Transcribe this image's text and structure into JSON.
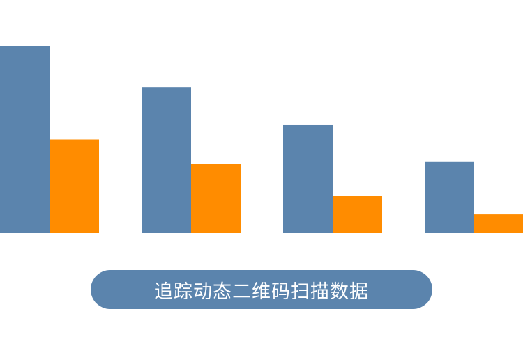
{
  "chart_data": {
    "type": "bar",
    "categories": [
      "",
      "",
      "",
      ""
    ],
    "series": [
      {
        "values": [
          100,
          78,
          58,
          38
        ],
        "color": "#5b84ad"
      },
      {
        "values": [
          50,
          37,
          20,
          10
        ],
        "color": "#ff8c00"
      }
    ],
    "ylim": [
      0,
      100
    ],
    "grid": false,
    "legend": "none"
  },
  "caption": {
    "text": "追踪动态二维码扫描数据"
  }
}
